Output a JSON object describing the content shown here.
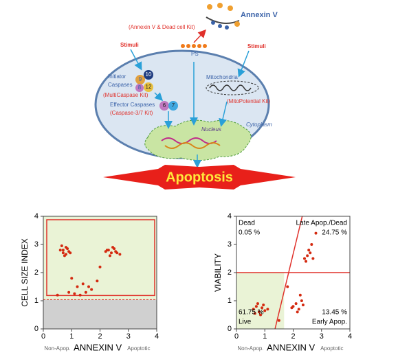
{
  "diagram": {
    "annexin": "Annexin V",
    "annexin_kit": "(Annexin V & Dead cell Kit)",
    "stimuli_left": "Stimuli",
    "stimuli_right": "Stimuli",
    "ps": "PS",
    "initiator": "Initiator",
    "caspases": "Caspases",
    "caspase_numbers": [
      "10",
      "9",
      "8",
      "12"
    ],
    "multicaspase_kit": "(MultiCaspase Kit)",
    "effector": "Effector Caspases",
    "effector_numbers": [
      "6",
      "7"
    ],
    "caspase37_kit": "(Caspase-3/7 Kit)",
    "mitochondria": "Mitochondria",
    "mito_kit": "(MitoPotential Kit)",
    "nucleus": "Nucleus",
    "cytoplasm": "Cytoplasm",
    "outcome": "Apoptosis"
  },
  "chart_data": [
    {
      "type": "scatter",
      "ylabel": "CELL SIZE INDEX",
      "xlabel": "ANNEXIN V",
      "xlabel_left": "Non-Apop.",
      "xlabel_right": "Apoptotic",
      "color": "#d42a10",
      "x": [
        0.6,
        0.7,
        0.8,
        0.9,
        0.75,
        0.85,
        0.65,
        0.95,
        0.7,
        0.8,
        2.2,
        2.3,
        2.4,
        2.5,
        2.6,
        2.35,
        2.45,
        2.55,
        2.25,
        2.7,
        1.0,
        1.2,
        1.4,
        1.5,
        1.7,
        1.9,
        1.3,
        1.6,
        0.9,
        1.1,
        0.5,
        2.0
      ],
      "y": [
        2.8,
        2.7,
        2.9,
        2.75,
        2.6,
        2.85,
        2.95,
        2.7,
        2.8,
        2.65,
        2.75,
        2.8,
        2.7,
        2.85,
        2.7,
        2.6,
        2.9,
        2.75,
        2.8,
        2.65,
        1.8,
        1.5,
        1.6,
        1.3,
        1.4,
        1.7,
        1.2,
        1.5,
        1.3,
        1.25,
        1.2,
        2.2
      ],
      "xlim": [
        0,
        4
      ],
      "ylim": [
        0,
        4
      ],
      "xticks": [
        0,
        1,
        2,
        3,
        4
      ],
      "yticks": [
        0,
        1,
        2,
        3,
        4
      ]
    },
    {
      "type": "scatter",
      "ylabel": "VIABILITY",
      "xlabel": "ANNEXIN V",
      "xlabel_left": "Non-Apop.",
      "xlabel_right": "Apoptotic",
      "color": "#d42a10",
      "x": [
        0.6,
        0.7,
        0.8,
        0.9,
        1.0,
        0.75,
        0.85,
        0.95,
        0.65,
        1.1,
        2.0,
        2.1,
        2.2,
        2.3,
        2.15,
        2.25,
        1.95,
        2.35,
        2.4,
        2.5,
        2.6,
        2.45,
        2.55,
        2.65,
        2.7,
        1.5,
        1.8,
        2.8
      ],
      "y": [
        0.7,
        0.8,
        0.6,
        0.75,
        0.65,
        0.9,
        0.5,
        0.85,
        0.55,
        0.7,
        0.8,
        0.9,
        0.7,
        1.0,
        0.6,
        1.2,
        0.75,
        0.85,
        2.5,
        2.6,
        2.7,
        2.4,
        2.8,
        3.0,
        2.5,
        0.3,
        1.5,
        3.4
      ],
      "xlim": [
        0,
        4
      ],
      "ylim": [
        0,
        4
      ],
      "xticks": [
        0,
        1,
        2,
        3,
        4
      ],
      "yticks": [
        0,
        1,
        2,
        3,
        4
      ],
      "quadrants": [
        {
          "name": "Dead",
          "value": 0.05,
          "value_label": "0.05 %"
        },
        {
          "name": "Late Apop./Dead",
          "value": 24.75,
          "value_label": "24.75 %"
        },
        {
          "name": "Live",
          "value": 61.75,
          "value_label": "61.75 %"
        },
        {
          "name": "Early Apop.",
          "value": 13.45,
          "value_label": "13.45 %"
        }
      ]
    }
  ]
}
